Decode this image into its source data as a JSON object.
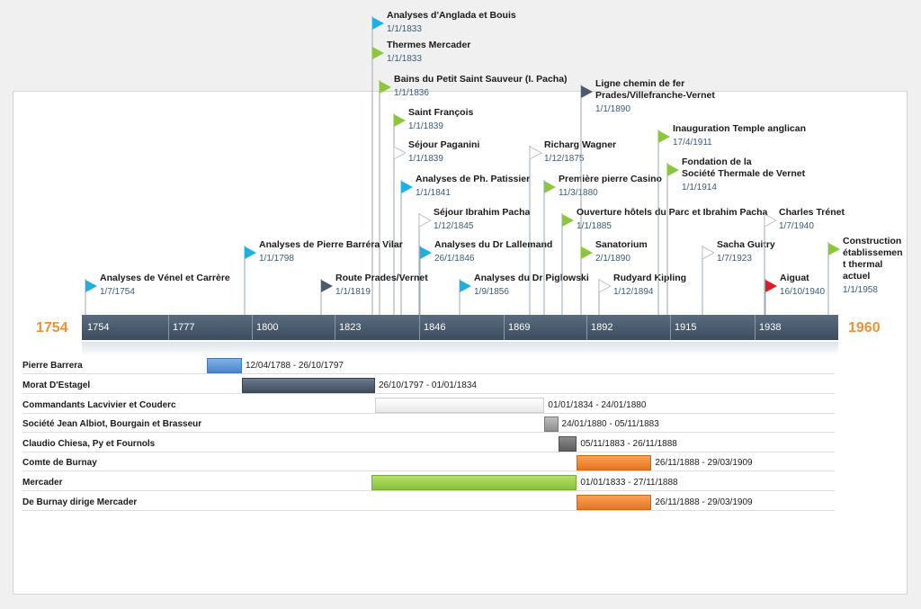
{
  "timeline": {
    "start_label": "1754",
    "end_label": "1960",
    "ticks": [
      "1754",
      "1777",
      "1800",
      "1823",
      "1846",
      "1869",
      "1892",
      "1915",
      "1938"
    ],
    "range_start": 1754.5,
    "range_end": 1960.0
  },
  "milestones": [
    {
      "title": [
        "Analyses d'Anglada et Bouis"
      ],
      "date": "1/1/1833",
      "year": 1833.0,
      "color": "#1fb0e0"
    },
    {
      "title": [
        "Thermes Mercader"
      ],
      "date": "1/1/1833",
      "year": 1833.0,
      "color": "#8cc63f"
    },
    {
      "title": [
        "Bains du Petit Saint Sauveur (I. Pacha)"
      ],
      "date": "1/1/1836",
      "year": 1836.0,
      "color": "#8cc63f"
    },
    {
      "title": [
        "Saint François"
      ],
      "date": "1/1/1839",
      "year": 1839.0,
      "color": "#8cc63f"
    },
    {
      "title": [
        "Séjour Paganini"
      ],
      "date": "1/1/1839",
      "year": 1839.0,
      "color": "#ffffff"
    },
    {
      "title": [
        "Analyses de Ph. Patissier"
      ],
      "date": "1/1/1841",
      "year": 1841.0,
      "color": "#1fb0e0"
    },
    {
      "title": [
        "Séjour Ibrahim Pacha"
      ],
      "date": "1/12/1845",
      "year": 1845.9,
      "color": "#ffffff"
    },
    {
      "title": [
        "Analyses du Dr Lallemand"
      ],
      "date": "26/1/1846",
      "year": 1846.1,
      "color": "#1fb0e0"
    },
    {
      "title": [
        "Analyses de Pierre Barréra Vilar"
      ],
      "date": "1/1/1798",
      "year": 1798.0,
      "color": "#1fb0e0"
    },
    {
      "title": [
        "Analyses de Vénel et Carrère"
      ],
      "date": "1/7/1754",
      "year": 1754.5,
      "color": "#1fb0e0"
    },
    {
      "title": [
        "Route Prades/Vernet"
      ],
      "date": "1/1/1819",
      "year": 1819.0,
      "color": "#4d5b6e"
    },
    {
      "title": [
        "Analyses du Dr Piglowski"
      ],
      "date": "1/9/1856",
      "year": 1856.7,
      "color": "#1fb0e0"
    },
    {
      "title": [
        "Richarg Wagner"
      ],
      "date": "1/12/1875",
      "year": 1875.9,
      "color": "#ffffff"
    },
    {
      "title": [
        "Première pierre Casino"
      ],
      "date": "11/3/1880",
      "year": 1880.2,
      "color": "#8cc63f"
    },
    {
      "title": [
        "Ligne chemin de fer",
        "Prades/Villefranche-Vernet"
      ],
      "date": "1/1/1890",
      "year": 1890.0,
      "color": "#4d5b6e"
    },
    {
      "title": [
        "Ouverture hôtels du Parc et Ibrahim Pacha"
      ],
      "date": "1/1/1885",
      "year": 1885.0,
      "color": "#8cc63f"
    },
    {
      "title": [
        "Sanatorium"
      ],
      "date": "2/1/1890",
      "year": 1890.0,
      "color": "#8cc63f"
    },
    {
      "title": [
        "Rudyard Kipling"
      ],
      "date": "1/12/1894",
      "year": 1894.9,
      "color": "#ffffff"
    },
    {
      "title": [
        "Inauguration Temple anglican"
      ],
      "date": "17/4/1911",
      "year": 1911.3,
      "color": "#8cc63f"
    },
    {
      "title": [
        "Fondation de la",
        "Société Thermale de Vernet"
      ],
      "date": "1/1/1914",
      "year": 1914.0,
      "color": "#8cc63f"
    },
    {
      "title": [
        "Sacha Guitry"
      ],
      "date": "1/7/1923",
      "year": 1923.5,
      "color": "#ffffff"
    },
    {
      "title": [
        "Charles Trénet"
      ],
      "date": "1/7/1940",
      "year": 1940.5,
      "color": "#ffffff"
    },
    {
      "title": [
        "Aiguat"
      ],
      "date": "16/10/1940",
      "year": 1940.8,
      "color": "#e11b22"
    },
    {
      "title": [
        "Construction",
        "établissemen",
        "t thermal",
        "actuel"
      ],
      "date": "1/1/1958",
      "year": 1958.0,
      "color": "#8cc63f"
    }
  ],
  "periods": [
    {
      "label": "Pierre Barrera",
      "range": "12/04/1788 - 26/10/1797",
      "start": 1788.3,
      "end": 1797.8,
      "color": "blue"
    },
    {
      "label": "Morat D'Estagel",
      "range": "26/10/1797 - 01/01/1834",
      "start": 1797.8,
      "end": 1834.0,
      "color": "navy"
    },
    {
      "label": "Commandants Lacvivier et Couderc",
      "range": "01/01/1834 - 24/01/1880",
      "start": 1834.0,
      "end": 1880.1,
      "color": "white"
    },
    {
      "label": "Société Jean Albiot, Bourgain et Brasseur",
      "range": "24/01/1880 - 05/11/1883",
      "start": 1880.1,
      "end": 1883.8,
      "color": "gray"
    },
    {
      "label": "Claudio Chiesa, Py et Fournols",
      "range": "05/11/1883 - 26/11/1888",
      "start": 1883.8,
      "end": 1888.9,
      "color": "dgray"
    },
    {
      "label": "Comte de Burnay",
      "range": "26/11/1888 - 29/03/1909",
      "start": 1888.9,
      "end": 1909.2,
      "color": "orange"
    },
    {
      "label": "Mercader",
      "range": "01/01/1833 - 27/11/1888",
      "start": 1833.0,
      "end": 1888.9,
      "color": "green"
    },
    {
      "label": "De Burnay dirige Mercader",
      "range": "26/11/1888 - 29/03/1909",
      "start": 1888.9,
      "end": 1909.2,
      "color": "orange"
    }
  ]
}
